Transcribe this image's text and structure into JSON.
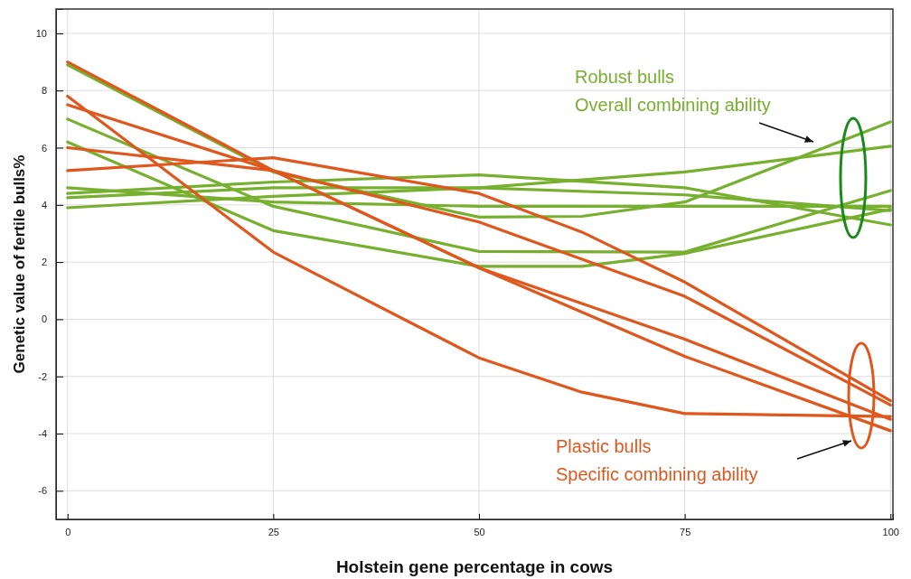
{
  "chart_data": {
    "type": "line",
    "xlabel": "Holstein gene percentage in cows",
    "ylabel": "Genetic value of fertile bulls%",
    "xlim": [
      -1.4,
      100.3
    ],
    "ylim": [
      -7,
      10.85
    ],
    "xticks": [
      0,
      25,
      50,
      75,
      100
    ],
    "yticks": [
      -6,
      -4,
      -2,
      0,
      2,
      4,
      6,
      8,
      10
    ],
    "grid": true,
    "annotations": [
      "Robust bulls",
      "Overall combining ability",
      "Plastic bulls",
      "Specific combining ability"
    ],
    "series": [
      {
        "color": "#77b02e",
        "x": [
          0,
          25,
          50,
          62.5,
          75,
          100
        ],
        "values": [
          8.9,
          5.15,
          3.57,
          3.6,
          4.1,
          6.9
        ]
      },
      {
        "color": "#77b02e",
        "x": [
          0,
          25,
          50,
          75,
          100
        ],
        "values": [
          7.0,
          3.95,
          2.37,
          2.35,
          4.5
        ]
      },
      {
        "color": "#77b02e",
        "x": [
          0,
          25,
          50,
          62.5,
          75,
          100
        ],
        "values": [
          6.2,
          3.1,
          1.85,
          1.85,
          2.3,
          3.85
        ]
      },
      {
        "color": "#77b02e",
        "x": [
          0,
          25,
          50,
          75,
          100
        ],
        "values": [
          4.25,
          4.6,
          4.6,
          5.15,
          6.05
        ]
      },
      {
        "color": "#77b02e",
        "x": [
          0,
          25,
          50,
          75,
          100
        ],
        "values": [
          4.4,
          4.8,
          5.05,
          4.6,
          3.3
        ]
      },
      {
        "color": "#77b02e",
        "x": [
          0,
          25,
          50,
          75,
          100
        ],
        "values": [
          3.9,
          4.3,
          4.6,
          4.35,
          3.8
        ]
      },
      {
        "color": "#77b02e",
        "x": [
          0,
          25,
          50,
          75,
          100
        ],
        "values": [
          4.6,
          4.1,
          3.95,
          3.95,
          3.95
        ]
      },
      {
        "color": "#e0571d",
        "x": [
          0,
          25,
          50,
          62.5,
          75,
          100
        ],
        "values": [
          5.2,
          5.65,
          4.4,
          3.05,
          1.3,
          -2.85
        ]
      },
      {
        "color": "#e0571d",
        "x": [
          0,
          25,
          50,
          75,
          100
        ],
        "values": [
          7.5,
          5.2,
          3.4,
          0.8,
          -3.0
        ]
      },
      {
        "color": "#e0571d",
        "x": [
          0,
          25,
          50,
          75,
          100
        ],
        "values": [
          9.0,
          5.2,
          1.8,
          -0.7,
          -3.5
        ]
      },
      {
        "color": "#e0571d",
        "x": [
          0,
          25,
          50,
          75,
          100
        ],
        "values": [
          6.0,
          5.2,
          1.8,
          -1.3,
          -3.9
        ]
      },
      {
        "color": "#e0571d",
        "x": [
          0,
          25,
          50,
          62.5,
          75,
          100
        ],
        "values": [
          7.8,
          2.35,
          -1.35,
          -2.55,
          -3.3,
          -3.4
        ]
      }
    ]
  }
}
